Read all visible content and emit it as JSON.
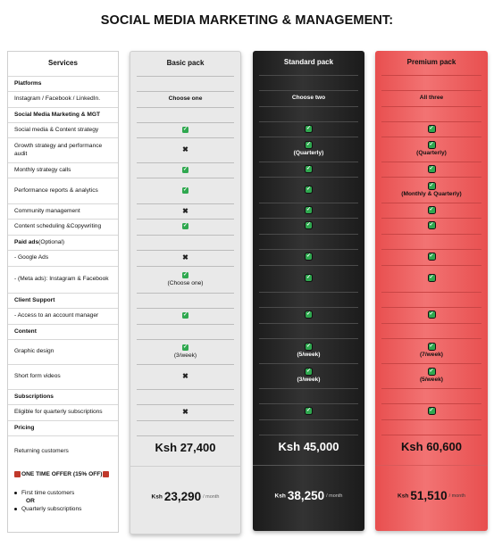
{
  "title": "SOCIAL MEDIA MARKETING & MANAGEMENT:",
  "columns": {
    "services": "Services",
    "basic": "Basic pack",
    "standard": "Standard pack",
    "premium": "Premium pack"
  },
  "rows": [
    {
      "label": "Platforms",
      "bold": true,
      "basic": "",
      "standard": "",
      "premium": ""
    },
    {
      "label": "Instagram / Facebook / LinkedIn.",
      "basic": "Choose one",
      "standard": "Choose two",
      "premium": "All three",
      "textcell": true
    },
    {
      "label": "Social Media Marketing & MGT",
      "bold": true
    },
    {
      "label": "Social media & Content strategy",
      "basic": "check",
      "standard": "check",
      "premium": "check"
    },
    {
      "label": "Growth strategy and performance audit",
      "basic": "cross",
      "standard": "check",
      "standard_note": "(Quarterly)",
      "premium": "check",
      "premium_note": "(Quarterly)"
    },
    {
      "label": "Monthly strategy calls",
      "basic": "check",
      "standard": "check",
      "premium": "check"
    },
    {
      "label": "Performance reports & analytics",
      "basic": "check",
      "standard": "check",
      "premium": "check",
      "premium_note": "(Monthly & Quarterly)"
    },
    {
      "label": "Community management",
      "basic": "cross",
      "standard": "check",
      "premium": "check"
    },
    {
      "label": "Content scheduling &Copywriting",
      "basic": "check",
      "standard": "check",
      "premium": "check"
    },
    {
      "label": "Paid ads",
      "label_suffix": " (Optional)",
      "bold": true
    },
    {
      "label": "- Google Ads",
      "basic": "cross",
      "standard": "check",
      "premium": "check"
    },
    {
      "label": "- (Meta ads): Instagram & Facebook",
      "basic": "check",
      "basic_note": "(Choose one)",
      "standard": "check",
      "premium": "check"
    },
    {
      "label": "Client Support",
      "bold": true
    },
    {
      "label": "- Access to an account manager",
      "basic": "check",
      "standard": "check",
      "premium": "check"
    },
    {
      "label": "Content",
      "bold": true
    },
    {
      "label": "Graphic design",
      "basic": "check",
      "basic_note": "(3/week)",
      "standard": "check",
      "standard_note": "(5/week)",
      "premium": "check",
      "premium_note": "(7/week)"
    },
    {
      "label": "Short form videos",
      "basic": "cross",
      "standard": "check",
      "standard_note": "(3/week)",
      "premium": "check",
      "premium_note": "(5/week)"
    },
    {
      "label": "Subscriptions",
      "bold": true
    },
    {
      "label": "Eligible for quarterly subscriptions",
      "basic": "cross",
      "standard": "check",
      "premium": "check"
    },
    {
      "label": "Pricing",
      "bold": true
    },
    {
      "label": "Returning customers"
    }
  ],
  "prices": {
    "basic": "Ksh 27,400",
    "standard": "Ksh 45,000",
    "premium": "Ksh 60,600"
  },
  "promo": {
    "title": "ONE TIME OFFER (15% OFF)",
    "line1": "First time customers",
    "or": "OR",
    "line2": "Quarterly subscriptions"
  },
  "offers": {
    "currency": "Ksh",
    "per": "/ month",
    "basic": "23,290",
    "standard": "38,250",
    "premium": "51,510"
  },
  "colors": {
    "basic_bg": "#e9e9e9",
    "standard_bg": "#222222",
    "premium_bg": "#f06868",
    "check": "#2fa84f"
  }
}
